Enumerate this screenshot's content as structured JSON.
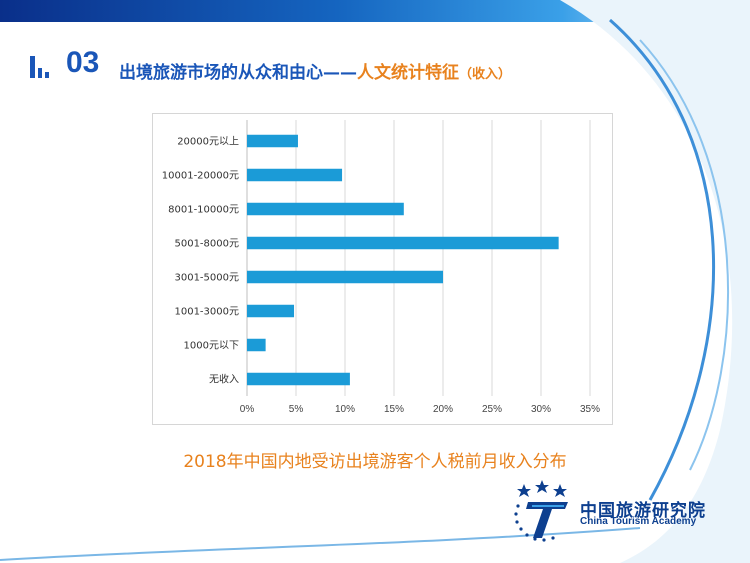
{
  "header": {
    "number": "03",
    "title_main": "出境旅游市场的从众和由心——",
    "title_sub": "人文统计特征",
    "title_small": "（收入）"
  },
  "caption": "2018年中国内地受访出境游客个人税前月收入分布",
  "logo": {
    "name_cn": "中国旅游研究院",
    "name_en": "China Tourism Academy",
    "icon": "star-t-logo-icon"
  },
  "colors": {
    "bar": "#1b9bd7",
    "accent_blue": "#1a56b8",
    "accent_orange": "#e8821e"
  },
  "chart_data": {
    "type": "bar",
    "orientation": "horizontal",
    "categories": [
      "20000元以上",
      "10001-20000元",
      "8001-10000元",
      "5001-8000元",
      "3001-5000元",
      "1001-3000元",
      "1000元以下",
      "无收入"
    ],
    "values": [
      5.2,
      9.7,
      16.0,
      31.8,
      20.0,
      4.8,
      1.9,
      10.5
    ],
    "xlim": [
      0,
      35
    ],
    "xticks": [
      0,
      5,
      10,
      15,
      20,
      25,
      30,
      35
    ],
    "xtick_labels": [
      "0%",
      "5%",
      "10%",
      "15%",
      "20%",
      "25%",
      "30%",
      "35%"
    ],
    "grid": true,
    "legend": "none"
  }
}
